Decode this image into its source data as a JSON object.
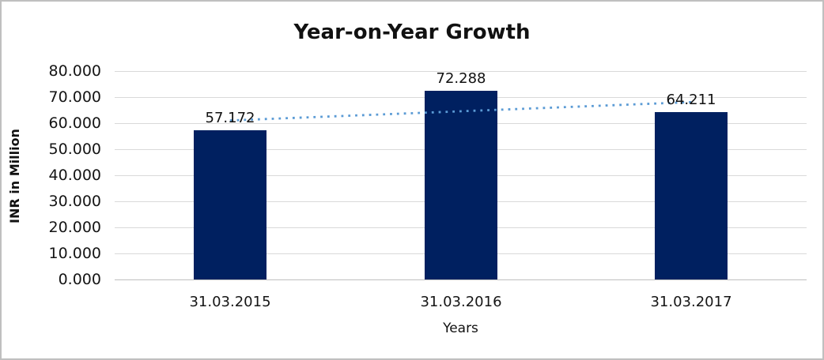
{
  "chart_data": {
    "type": "bar",
    "title": "Year-on-Year Growth",
    "xlabel": "Years",
    "ylabel": "INR in Million",
    "categories": [
      "31.03.2015",
      "31.03.2016",
      "31.03.2017"
    ],
    "values": [
      57.172,
      72.288,
      64.211
    ],
    "data_labels": [
      "57.172",
      "72.288",
      "64.211"
    ],
    "ylim": [
      0,
      80
    ],
    "ytick_step": 10,
    "ytick_labels": [
      "0.000",
      "10.000",
      "20.000",
      "30.000",
      "40.000",
      "50.000",
      "60.000",
      "70.000",
      "80.000"
    ],
    "grid": true,
    "legend": "none",
    "bar_color": "#002060",
    "gridline_color": "#d9d9d9",
    "axis_line_color": "#bfbfbf",
    "trendline": {
      "type": "linear",
      "style": "dotted",
      "color": "#5b9bd5",
      "start_value": 61.04,
      "end_value": 68.08
    }
  }
}
